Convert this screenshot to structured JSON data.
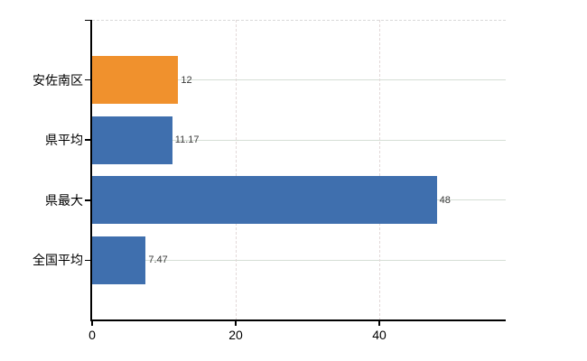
{
  "chart_data": {
    "type": "bar",
    "orientation": "horizontal",
    "title": "",
    "xlabel": "",
    "ylabel": "",
    "categories": [
      "安佐南区",
      "県平均",
      "県最大",
      "全国平均"
    ],
    "values": [
      12,
      11.17,
      48,
      7.47
    ],
    "value_labels": [
      "12",
      "11.17",
      "48",
      "7.47"
    ],
    "bar_colors": [
      "#f0912d",
      "#3f6fae",
      "#3f6fae",
      "#3f6fae"
    ],
    "x_ticks": [
      0,
      20,
      40
    ],
    "x_tick_labels": [
      "0",
      "20",
      "40"
    ],
    "xlim": [
      0,
      57.6
    ],
    "grid": true,
    "legend": null
  },
  "colors": {
    "bar_orange": "#f0912d",
    "bar_blue": "#3f6fae",
    "axis_line": "#000000",
    "grid_horizontal": "#d5ded5",
    "grid_vertical": "#e2d8d8",
    "plot_top_border": "#d9d9d9",
    "value_label_text": "#3a3a3a",
    "background": "#ffffff"
  }
}
